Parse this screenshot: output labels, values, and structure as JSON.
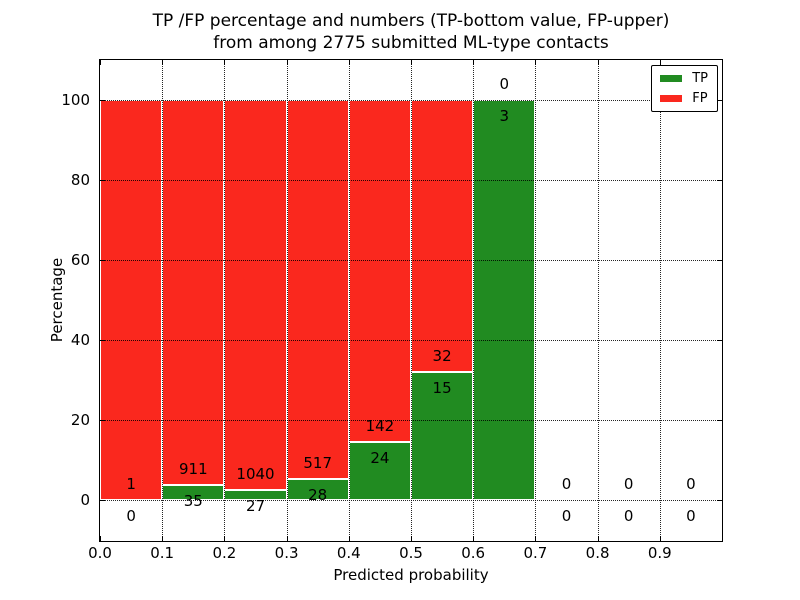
{
  "figure": {
    "background": "#ffffff"
  },
  "chart_data": {
    "type": "bar",
    "subtype": "stacked-percentage-histogram",
    "title_lines": [
      "TP /FP percentage and numbers (TP-bottom value, FP-upper)",
      "from among 2775 submitted ML-type contacts"
    ],
    "title": "TP /FP percentage and numbers (TP-bottom value, FP-upper) from among 2775 submitted ML-type contacts",
    "xlabel": "Predicted probability",
    "ylabel": "Percentage",
    "total_contacts": 2775,
    "xlim": [
      0.0,
      1.0
    ],
    "ylim": [
      -10,
      110
    ],
    "xticks": [
      0.0,
      0.1,
      0.2,
      0.3,
      0.4,
      0.5,
      0.6,
      0.7,
      0.8,
      0.9
    ],
    "xtick_labels": [
      "0.0",
      "0.1",
      "0.2",
      "0.3",
      "0.4",
      "0.5",
      "0.6",
      "0.7",
      "0.8",
      "0.9"
    ],
    "yticks": [
      0,
      20,
      40,
      60,
      80,
      100
    ],
    "ytick_labels": [
      "0",
      "20",
      "40",
      "60",
      "80",
      "100"
    ],
    "grid": true,
    "grid_style": "dotted",
    "bin_width": 0.1,
    "bins": [
      {
        "range": [
          0.0,
          0.1
        ],
        "tp": 0,
        "fp": 1
      },
      {
        "range": [
          0.1,
          0.2
        ],
        "tp": 35,
        "fp": 911
      },
      {
        "range": [
          0.2,
          0.3
        ],
        "tp": 27,
        "fp": 1040
      },
      {
        "range": [
          0.3,
          0.4
        ],
        "tp": 28,
        "fp": 517
      },
      {
        "range": [
          0.4,
          0.5
        ],
        "tp": 24,
        "fp": 142
      },
      {
        "range": [
          0.5,
          0.6
        ],
        "tp": 15,
        "fp": 32
      },
      {
        "range": [
          0.6,
          0.7
        ],
        "tp": 3,
        "fp": 0
      },
      {
        "range": [
          0.7,
          0.8
        ],
        "tp": 0,
        "fp": 0
      },
      {
        "range": [
          0.8,
          0.9
        ],
        "tp": 0,
        "fp": 0
      },
      {
        "range": [
          0.9,
          1.0
        ],
        "tp": 0,
        "fp": 0
      }
    ],
    "legend": {
      "position": "upper-right",
      "entries": [
        {
          "label": "TP",
          "color": "#218B21"
        },
        {
          "label": "FP",
          "color": "#FA281E"
        }
      ]
    },
    "colors": {
      "tp": "#218B21",
      "fp": "#FA281E",
      "bar_edge": "#ffffff",
      "grid": "#000000",
      "axis": "#000000",
      "text": "#000000",
      "background": "#ffffff"
    }
  }
}
